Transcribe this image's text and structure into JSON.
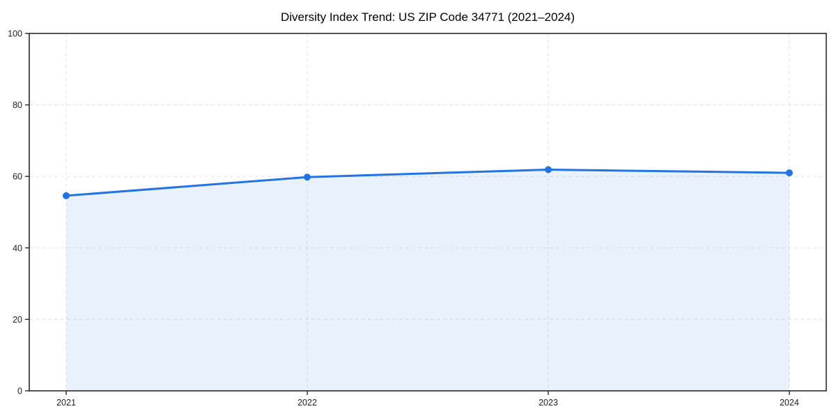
{
  "page": {
    "background": "#ffffff"
  },
  "chart_data": {
    "type": "area",
    "title": "Diversity Index Trend: US ZIP Code 34771 (2021–2024)",
    "x": [
      "2021",
      "2022",
      "2023",
      "2024"
    ],
    "series": [
      {
        "name": "Diversity Index",
        "values": [
          54.6,
          59.8,
          61.9,
          61.0
        ]
      }
    ],
    "xlabel": "",
    "ylabel": "",
    "ylim": [
      0,
      100
    ],
    "yticks": [
      0,
      20,
      40,
      60,
      80,
      100
    ],
    "grid": "dashed-both-axes",
    "legend": "none",
    "marker": "circle",
    "colors": {
      "line": "#2273e6",
      "fill": "rgba(34,115,230,0.10)",
      "marker": "#2273e6",
      "grid": "#e3e3e3",
      "axis": "#1a1a1a",
      "tick_label": "#222222",
      "title": "#000000"
    }
  }
}
